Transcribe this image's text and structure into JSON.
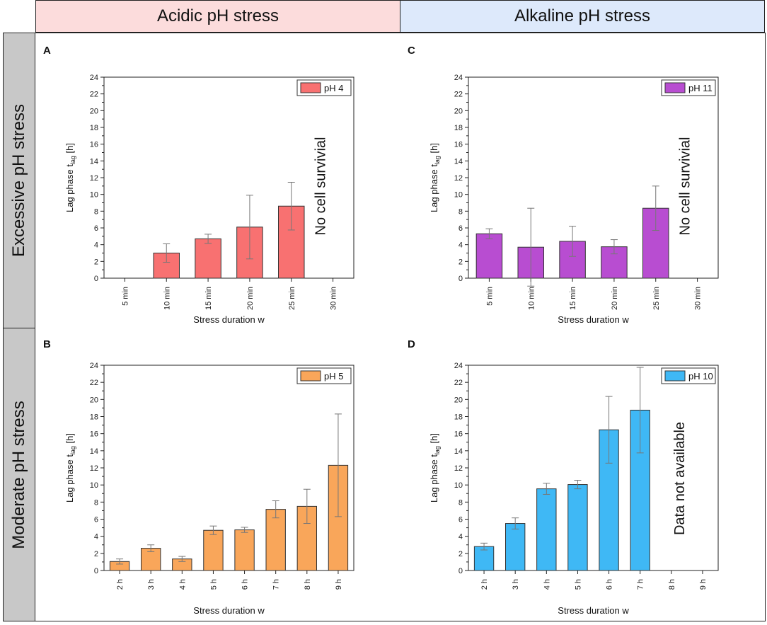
{
  "header": {
    "acidic": "Acidic pH stress",
    "alkaline": "Alkaline pH stress",
    "acidic_color": "#fcdcdc",
    "alkaline_color": "#dde9fb"
  },
  "rows": {
    "excessive": "Excessive pH stress",
    "moderate": "Moderate pH stress"
  },
  "chart_data": [
    {
      "type": "bar",
      "panel": "A",
      "legend": "pH 4",
      "color": "#f87171",
      "categories": [
        "5 min",
        "10 min",
        "15 min",
        "20 min",
        "25 min",
        "30 min"
      ],
      "values": [
        null,
        3.0,
        4.7,
        6.1,
        8.6,
        null
      ],
      "errors": [
        null,
        1.1,
        0.55,
        3.8,
        2.85,
        null
      ],
      "ylim": [
        0,
        24
      ],
      "yticks": [
        "0",
        "2",
        "4",
        "6",
        "8",
        "10",
        "12",
        "14",
        "16",
        "18",
        "20",
        "22",
        "24"
      ],
      "xlabel": "Stress duration w",
      "ylabel_main": "Lag phase t",
      "ylabel_sub": "lag",
      "ylabel_unit": " [h]",
      "annotation": "No cell survivial"
    },
    {
      "type": "bar",
      "panel": "B",
      "legend": "pH 5",
      "color": "#f9a65a",
      "categories": [
        "2 h",
        "3 h",
        "4 h",
        "5 h",
        "6 h",
        "7 h",
        "8 h",
        "9 h"
      ],
      "values": [
        1.05,
        2.6,
        1.35,
        4.7,
        4.75,
        7.15,
        7.5,
        12.3
      ],
      "errors": [
        0.3,
        0.4,
        0.3,
        0.5,
        0.3,
        1.0,
        2.0,
        6.0
      ],
      "ylim": [
        0,
        24
      ],
      "yticks": [
        "0",
        "2",
        "4",
        "6",
        "8",
        "10",
        "12",
        "14",
        "16",
        "18",
        "20",
        "22",
        "24"
      ],
      "xlabel": "Stress duration w",
      "ylabel_main": "Lag phase t",
      "ylabel_sub": "lag",
      "ylabel_unit": " [h]",
      "annotation": ""
    },
    {
      "type": "bar",
      "panel": "C",
      "legend": "pH 11",
      "color": "#b84dd1",
      "categories": [
        "5 min",
        "10 min",
        "15 min",
        "20 min",
        "25 min",
        "30 min"
      ],
      "values": [
        5.3,
        3.7,
        4.4,
        3.75,
        8.35,
        null
      ],
      "errors": [
        0.6,
        4.65,
        1.8,
        0.85,
        2.65,
        null
      ],
      "ylim": [
        0,
        24
      ],
      "yticks": [
        "0",
        "2",
        "4",
        "6",
        "8",
        "10",
        "12",
        "14",
        "16",
        "18",
        "20",
        "22",
        "24"
      ],
      "xlabel": "Stress duration w",
      "ylabel_main": "Lag phase t",
      "ylabel_sub": "lag",
      "ylabel_unit": " [h]",
      "annotation": "No cell survivial"
    },
    {
      "type": "bar",
      "panel": "D",
      "legend": "pH 10",
      "color": "#3fb8f5",
      "categories": [
        "2 h",
        "3 h",
        "4 h",
        "5 h",
        "6 h",
        "7 h",
        "8 h",
        "9 h"
      ],
      "values": [
        2.8,
        5.5,
        9.55,
        10.05,
        16.45,
        18.75,
        null,
        null
      ],
      "errors": [
        0.4,
        0.65,
        0.65,
        0.5,
        3.9,
        5.0,
        null,
        null
      ],
      "ylim": [
        0,
        24
      ],
      "yticks": [
        "0",
        "2",
        "4",
        "6",
        "8",
        "10",
        "12",
        "14",
        "16",
        "18",
        "20",
        "22",
        "24"
      ],
      "xlabel": "Stress duration w",
      "ylabel_main": "Lag phase t",
      "ylabel_sub": "lag",
      "ylabel_unit": " [h]",
      "annotation": "Data not available"
    }
  ]
}
